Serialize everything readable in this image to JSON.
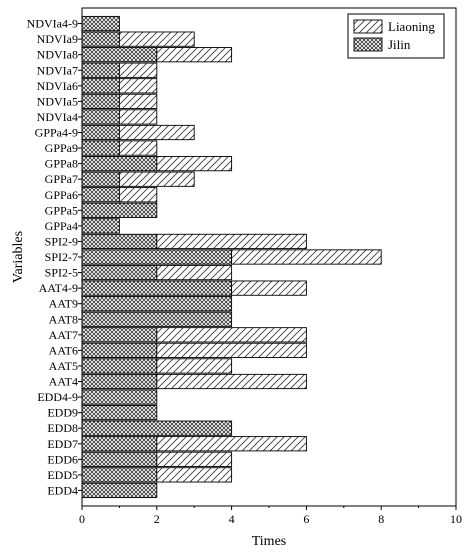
{
  "chart_data": {
    "type": "bar",
    "orientation": "horizontal",
    "stacked": true,
    "xlabel": "Times",
    "ylabel": "Variables",
    "xlim": [
      0,
      10
    ],
    "xticks": [
      "0",
      "2",
      "4",
      "6",
      "8",
      "10"
    ],
    "grid": false,
    "legend_position": "top-right",
    "categories": [
      "NDVIa4-9",
      "NDVIa9",
      "NDVIa8",
      "NDVIa7",
      "NDVIa6",
      "NDVIa5",
      "NDVIa4",
      "GPPa4-9",
      "GPPa9",
      "GPPa8",
      "GPPa7",
      "GPPa6",
      "GPPa5",
      "GPPa4",
      "SPI2-9",
      "SPI2-7",
      "SPI2-5",
      "AAT4-9",
      "AAT9",
      "AAT8",
      "AAT7",
      "AAT6",
      "AAT5",
      "AAT4",
      "EDD4-9",
      "EDD9",
      "EDD8",
      "EDD7",
      "EDD6",
      "EDD5",
      "EDD4"
    ],
    "series": [
      {
        "name": "Jilin",
        "pattern": "crosshatch",
        "values": [
          1,
          1,
          2,
          1,
          1,
          1,
          1,
          1,
          1,
          2,
          1,
          1,
          2,
          1,
          2,
          4,
          2,
          4,
          4,
          4,
          2,
          2,
          2,
          2,
          2,
          2,
          4,
          2,
          2,
          2,
          2
        ]
      },
      {
        "name": "Liaoning",
        "pattern": "diagonal",
        "values": [
          0,
          2,
          2,
          1,
          1,
          1,
          1,
          2,
          1,
          2,
          2,
          1,
          0,
          0,
          4,
          4,
          2,
          2,
          0,
          0,
          4,
          4,
          2,
          4,
          0,
          0,
          0,
          4,
          2,
          2,
          0
        ]
      }
    ]
  }
}
